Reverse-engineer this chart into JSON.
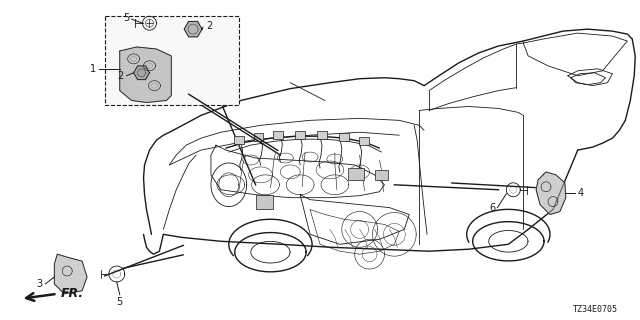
{
  "diagram_code": "TZ34E0705",
  "background_color": "#ffffff",
  "line_color": "#1a1a1a",
  "fig_width": 6.4,
  "fig_height": 3.2,
  "dpi": 100,
  "label_fontsize": 7.0,
  "code_fontsize": 6.0,
  "fr_text": "FR.",
  "inset_label_1": "1",
  "inset_label_2a": "2",
  "inset_label_2b": "2",
  "inset_label_5a": "5",
  "label_3": "3",
  "label_4": "4",
  "label_5b": "5",
  "label_6": "6"
}
